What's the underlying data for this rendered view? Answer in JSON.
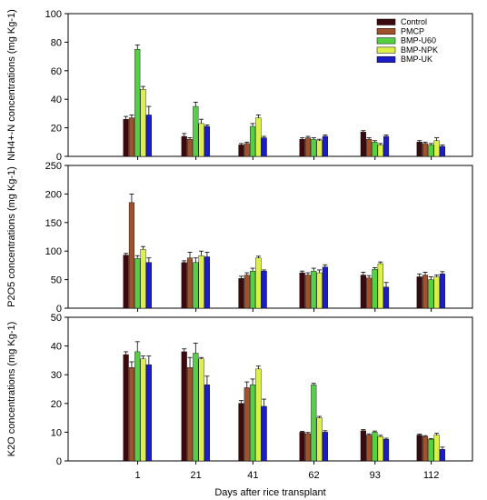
{
  "colors": {
    "Control": "#3a0a0f",
    "PMCP": "#a0522d",
    "BMP-U60": "#55d044",
    "BMP-NPK": "#ddf04a",
    "BMP-UK": "#1c1cc8"
  },
  "chart_data": {
    "type": "bar",
    "categories": [
      "1",
      "21",
      "41",
      "62",
      "93",
      "112"
    ],
    "xlabel": "Days after rice transplant",
    "legend": {
      "position": "top-right",
      "entries": [
        "Control",
        "PMCP",
        "BMP-U60",
        "BMP-NPK",
        "BMP-UK"
      ]
    },
    "panels": [
      {
        "ylabel": "NH4+-N concentrations (mg Kg-1)",
        "ylim": [
          0,
          100
        ],
        "yticks": [
          "0",
          "20",
          "40",
          "60",
          "80",
          "100"
        ],
        "series": [
          {
            "name": "Control",
            "values": [
              26,
              14,
              8,
              12,
              17,
              10
            ],
            "errors": [
              2,
              2,
              1,
              1,
              1,
              1
            ]
          },
          {
            "name": "PMCP",
            "values": [
              27,
              12,
              9,
              13,
              12,
              9
            ],
            "errors": [
              2,
              1,
              1,
              1,
              1,
              1
            ]
          },
          {
            "name": "BMP-U60",
            "values": [
              75,
              35,
              21,
              12,
              10,
              8
            ],
            "errors": [
              3,
              3,
              2,
              1,
              1,
              1
            ]
          },
          {
            "name": "BMP-NPK",
            "values": [
              47,
              23,
              27,
              11,
              8,
              11
            ],
            "errors": [
              2,
              3,
              2,
              1,
              1,
              2
            ]
          },
          {
            "name": "BMP-UK",
            "values": [
              29,
              21,
              13,
              14,
              14,
              7
            ],
            "errors": [
              6,
              1,
              1,
              1,
              1,
              1
            ]
          }
        ]
      },
      {
        "ylabel": "P2O5 concentrations (mg Kg-1)",
        "ylim": [
          0,
          250
        ],
        "yticks": [
          "0",
          "50",
          "100",
          "150",
          "200",
          "250"
        ],
        "series": [
          {
            "name": "Control",
            "values": [
              93,
              80,
              52,
              62,
              58,
              55
            ],
            "errors": [
              3,
              3,
              4,
              3,
              5,
              5
            ]
          },
          {
            "name": "PMCP",
            "values": [
              185,
              88,
              58,
              58,
              53,
              58
            ],
            "errors": [
              15,
              10,
              4,
              4,
              4,
              5
            ]
          },
          {
            "name": "BMP-U60",
            "values": [
              87,
              80,
              65,
              65,
              68,
              50
            ],
            "errors": [
              5,
              8,
              5,
              5,
              3,
              5
            ]
          },
          {
            "name": "BMP-NPK",
            "values": [
              103,
              92,
              88,
              62,
              78,
              55
            ],
            "errors": [
              5,
              8,
              3,
              5,
              3,
              3
            ]
          },
          {
            "name": "BMP-UK",
            "values": [
              80,
              90,
              65,
              72,
              37,
              60
            ],
            "errors": [
              8,
              8,
              2,
              4,
              8,
              4
            ]
          }
        ]
      },
      {
        "ylabel": "K2O concentrations (mg Kg-1)",
        "ylim": [
          0,
          50
        ],
        "yticks": [
          "0",
          "10",
          "20",
          "30",
          "40",
          "50"
        ],
        "series": [
          {
            "name": "Control",
            "values": [
              37,
              38,
              20,
              10,
              10.5,
              9
            ],
            "errors": [
              1,
              1,
              1,
              0.3,
              0.4,
              0.3
            ]
          },
          {
            "name": "PMCP",
            "values": [
              32.5,
              32.5,
              25.5,
              9.5,
              9,
              8.5
            ],
            "errors": [
              2,
              3.5,
              2,
              0.4,
              0.4,
              0.3
            ]
          },
          {
            "name": "BMP-U60",
            "values": [
              38,
              37.5,
              26.5,
              26.5,
              10,
              7.5
            ],
            "errors": [
              3.5,
              3.5,
              2,
              0.5,
              0.4,
              0.3
            ]
          },
          {
            "name": "BMP-NPK",
            "values": [
              35.5,
              35.5,
              32,
              15,
              8.5,
              9
            ],
            "errors": [
              1,
              0.5,
              1,
              0.5,
              0.4,
              0.6
            ]
          },
          {
            "name": "BMP-UK",
            "values": [
              33.5,
              26.5,
              19,
              10,
              7.5,
              4
            ],
            "errors": [
              3,
              3,
              2.5,
              0.5,
              0.4,
              0.8
            ]
          }
        ]
      }
    ]
  }
}
